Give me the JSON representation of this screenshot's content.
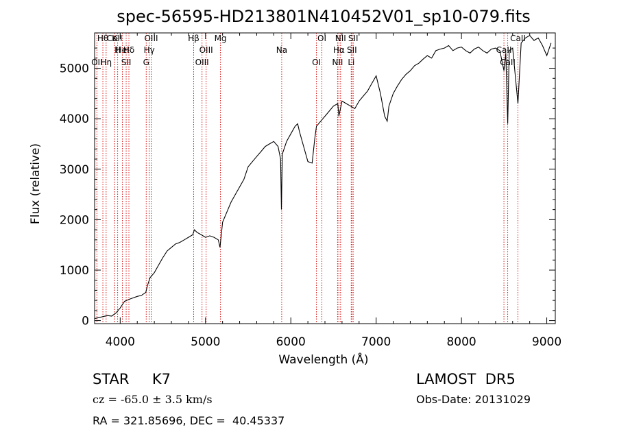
{
  "chart_data": {
    "type": "line",
    "title": "spec-56595-HD213801N410452V01_sp10-079.fits",
    "xlabel": "Wavelength (Å)",
    "ylabel": "Flux (relative)",
    "xlim": [
      3700,
      9100
    ],
    "ylim": [
      -60,
      5700
    ],
    "xticks": [
      4000,
      5000,
      6000,
      7000,
      8000,
      9000
    ],
    "yticks": [
      0,
      1000,
      2000,
      3000,
      4000,
      5000
    ],
    "series": [
      {
        "color": "#000000",
        "x": [
          3700,
          3750,
          3800,
          3850,
          3900,
          3950,
          4000,
          4050,
          4100,
          4150,
          4200,
          4250,
          4300,
          4320,
          4350,
          4400,
          4450,
          4500,
          4550,
          4600,
          4650,
          4700,
          4750,
          4800,
          4850,
          4870,
          4900,
          4950,
          5000,
          5050,
          5100,
          5150,
          5170,
          5200,
          5250,
          5300,
          5350,
          5400,
          5450,
          5500,
          5550,
          5600,
          5650,
          5700,
          5750,
          5800,
          5850,
          5880,
          5890,
          5900,
          5920,
          5950,
          6000,
          6050,
          6080,
          6100,
          6150,
          6200,
          6250,
          6280,
          6300,
          6350,
          6400,
          6450,
          6500,
          6550,
          6563,
          6600,
          6650,
          6700,
          6750,
          6800,
          6850,
          6900,
          6950,
          7000,
          7050,
          7100,
          7130,
          7150,
          7200,
          7250,
          7300,
          7350,
          7400,
          7450,
          7500,
          7550,
          7600,
          7650,
          7700,
          7750,
          7800,
          7850,
          7900,
          7950,
          8000,
          8050,
          8100,
          8150,
          8200,
          8250,
          8300,
          8350,
          8400,
          8450,
          8498,
          8520,
          8542,
          8560,
          8600,
          8662,
          8700,
          8750,
          8800,
          8850,
          8900,
          8950,
          9000,
          9050
        ],
        "y": [
          40,
          60,
          80,
          100,
          90,
          150,
          250,
          380,
          420,
          450,
          480,
          500,
          560,
          700,
          850,
          950,
          1100,
          1250,
          1380,
          1450,
          1520,
          1550,
          1600,
          1650,
          1700,
          1800,
          1750,
          1700,
          1650,
          1680,
          1650,
          1600,
          1450,
          1950,
          2150,
          2350,
          2500,
          2650,
          2800,
          3050,
          3150,
          3250,
          3350,
          3450,
          3500,
          3550,
          3450,
          3200,
          2200,
          3300,
          3400,
          3550,
          3700,
          3850,
          3900,
          3750,
          3450,
          3150,
          3120,
          3600,
          3850,
          3950,
          4050,
          4150,
          4250,
          4300,
          4050,
          4350,
          4300,
          4250,
          4200,
          4350,
          4450,
          4550,
          4700,
          4850,
          4500,
          4050,
          3950,
          4250,
          4500,
          4650,
          4780,
          4880,
          4950,
          5050,
          5100,
          5180,
          5250,
          5200,
          5350,
          5380,
          5400,
          5450,
          5350,
          5400,
          5420,
          5350,
          5300,
          5380,
          5420,
          5350,
          5300,
          5380,
          5400,
          5350,
          4950,
          5300,
          3900,
          5350,
          5400,
          4300,
          5500,
          5600,
          5650,
          5550,
          5600,
          5450,
          5250,
          5500
        ]
      }
    ],
    "line_markers": [
      {
        "label": "CaII",
        "x": 3934
      },
      {
        "label": "H",
        "x": 3970
      },
      {
        "label": "Hη",
        "x": 3835
      },
      {
        "label": "Hθ",
        "x": 3797
      },
      {
        "label": "HeI",
        "x": 4026
      },
      {
        "label": "SII",
        "x": 4070
      },
      {
        "label": "K",
        "x": 3934
      },
      {
        "label": "Hδ",
        "x": 4102
      },
      {
        "label": "OII",
        "x": 3727
      },
      {
        "label": "OIII",
        "x": 4363
      },
      {
        "label": "Hγ",
        "x": 4340
      },
      {
        "label": "G",
        "x": 4305
      },
      {
        "label": "Hβ",
        "x": 4861
      },
      {
        "label": "OIII",
        "x": 5007
      },
      {
        "label": "OIII",
        "x": 4959
      },
      {
        "label": "Mg",
        "x": 5175
      },
      {
        "label": "Na",
        "x": 5893
      },
      {
        "label": "OI",
        "x": 6300
      },
      {
        "label": "OI",
        "x": 6364
      },
      {
        "label": "Hα",
        "x": 6563
      },
      {
        "label": "NII",
        "x": 6548
      },
      {
        "label": "NII",
        "x": 6583
      },
      {
        "label": "SII",
        "x": 6716
      },
      {
        "label": "Li",
        "x": 6708
      },
      {
        "label": "SII",
        "x": 6731
      },
      {
        "label": "CaII",
        "x": 8498
      },
      {
        "label": "CaII",
        "x": 8542
      },
      {
        "label": "CaII",
        "x": 8662
      }
    ]
  },
  "info": {
    "object": "STAR     K7",
    "survey": "LAMOST  DR5",
    "cz": "cz = -65.0 ± 3.5 km/s",
    "obs_date": "Obs-Date: 20131029",
    "coords": "RA = 321.85696, DEC =  40.45337"
  }
}
